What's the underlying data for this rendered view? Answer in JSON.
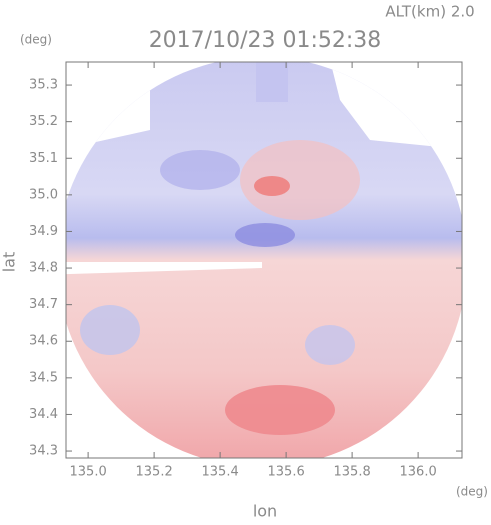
{
  "chart_data": {
    "type": "radar-image",
    "title": "2017/10/23 01:52:38",
    "subtitle": "ALT(km) 2.0",
    "y_unit": "(deg)",
    "x_unit": "(deg)",
    "ylabel": "lat",
    "xlabel": "lon",
    "xlim": [
      134.933,
      136.133
    ],
    "ylim": [
      34.281,
      35.363
    ],
    "xticks": [
      {
        "value": 135.0,
        "label": "135.0"
      },
      135.2,
      135.4,
      135.6,
      135.8,
      {
        "value": 136.0,
        "label": "136.0"
      }
    ],
    "yticks": [
      34.3,
      34.4,
      34.5,
      34.6,
      34.7,
      34.8,
      34.9,
      {
        "value": 35.0,
        "label": "35.0"
      },
      35.1,
      35.2,
      35.3
    ]
  }
}
